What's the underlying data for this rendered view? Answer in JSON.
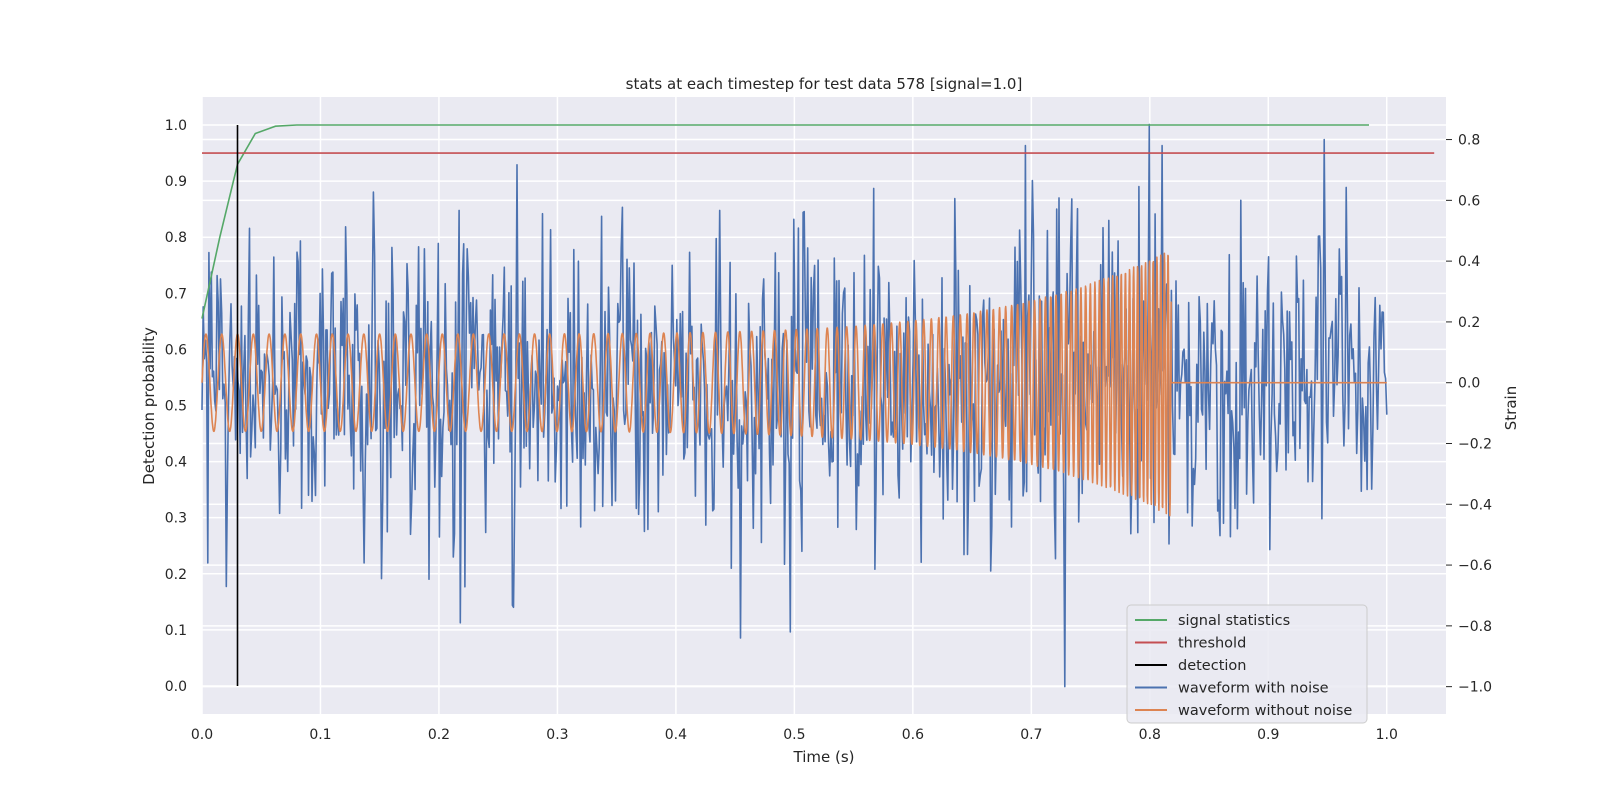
{
  "chart_data": {
    "type": "line",
    "title": "stats at each timestep for test data 578 [signal=1.0]",
    "xlabel": "Time (s)",
    "ylabel_left": "Detection probability",
    "ylabel_right": "Strain",
    "xlim": [
      0.0,
      1.05
    ],
    "ylim_left": [
      -0.05,
      1.05
    ],
    "ylim_right": [
      -1.09,
      0.94
    ],
    "x_ticks": [
      "0.0",
      "0.1",
      "0.2",
      "0.3",
      "0.4",
      "0.5",
      "0.6",
      "0.7",
      "0.8",
      "0.9",
      "1.0"
    ],
    "y_left_ticks": [
      "0.0",
      "0.1",
      "0.2",
      "0.3",
      "0.4",
      "0.5",
      "0.6",
      "0.7",
      "0.8",
      "0.9",
      "1.0"
    ],
    "y_right_ticks": [
      "−1.0",
      "−0.8",
      "−0.6",
      "−0.4",
      "−0.2",
      "0.0",
      "0.2",
      "0.4",
      "0.6",
      "0.8"
    ],
    "grid": true,
    "legend_position": "lower-right",
    "legend": [
      "signal statistics",
      "threshold",
      "detection",
      "waveform with noise",
      "waveform without noise"
    ],
    "series": [
      {
        "name": "signal statistics",
        "axis": "left",
        "color": "#55a868",
        "x": [
          0.0,
          0.015,
          0.03,
          0.045,
          0.062,
          0.08,
          0.1,
          0.2,
          0.4,
          0.6,
          0.8,
          0.985
        ],
        "y": [
          0.655,
          0.8,
          0.93,
          0.985,
          0.998,
          1.0,
          1.0,
          1.0,
          1.0,
          1.0,
          1.0,
          1.0
        ]
      },
      {
        "name": "threshold",
        "axis": "left",
        "color": "#c44e52",
        "x": [
          0.0,
          1.04
        ],
        "y": [
          0.95,
          0.95
        ]
      },
      {
        "name": "detection",
        "axis": "left",
        "color": "#000000",
        "x": [
          0.03,
          0.03
        ],
        "y": [
          0.0,
          1.0
        ]
      },
      {
        "name": "waveform with noise",
        "axis": "right",
        "color": "#4c72b0",
        "x_range": [
          0.0,
          1.0
        ],
        "samples": 1024,
        "noise_std": 0.26,
        "extremes": [
          {
            "x": 0.8,
            "y": 0.85
          },
          {
            "x": 0.947,
            "y": 0.8
          },
          {
            "x": 0.728,
            "y": -1.0
          },
          {
            "x": 0.455,
            "y": -0.84
          },
          {
            "x": 0.497,
            "y": -0.82
          },
          {
            "x": 0.218,
            "y": -0.79
          }
        ]
      },
      {
        "name": "waveform without noise",
        "axis": "right",
        "color": "#dd8452",
        "x_range": [
          0.0,
          0.818
        ],
        "flat_after": [
          0.818,
          1.0
        ],
        "amplitude_start": 0.16,
        "amplitude_end": 0.44,
        "frequency_start_hz": 75,
        "frequency_end_hz": 330
      }
    ]
  }
}
